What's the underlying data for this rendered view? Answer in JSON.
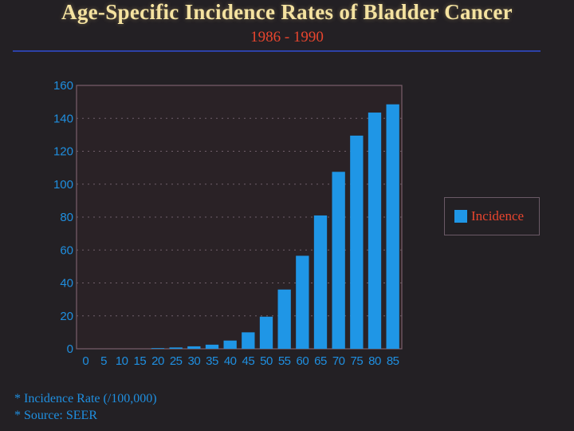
{
  "header": {
    "title": "Age-Specific Incidence Rates of Bladder Cancer",
    "subtitle": "1986 - 1990"
  },
  "footnotes": [
    "* Incidence Rate (/100,000)",
    "* Source: SEER"
  ],
  "colors": {
    "bar": "#1f96e6",
    "title": "#f4e2a0",
    "subtitle": "#e8452e",
    "axis_text": "#1f8fe0",
    "background": "#232024"
  },
  "chart_data": {
    "type": "bar",
    "categories": [
      "0",
      "5",
      "10",
      "15",
      "20",
      "25",
      "30",
      "35",
      "40",
      "45",
      "50",
      "55",
      "60",
      "65",
      "70",
      "75",
      "80",
      "85"
    ],
    "series": [
      {
        "name": "Incidence",
        "values": [
          0,
          0,
          0,
          0,
          0.4,
          0.8,
          1.5,
          2.5,
          5,
          10,
          19.5,
          36,
          56.5,
          81,
          107.5,
          129.5,
          143.5,
          148.5
        ]
      }
    ],
    "yticks": [
      0,
      20,
      40,
      60,
      80,
      100,
      120,
      140,
      160
    ],
    "ylim": [
      0,
      160
    ],
    "grid": true,
    "legend_position": "right"
  }
}
